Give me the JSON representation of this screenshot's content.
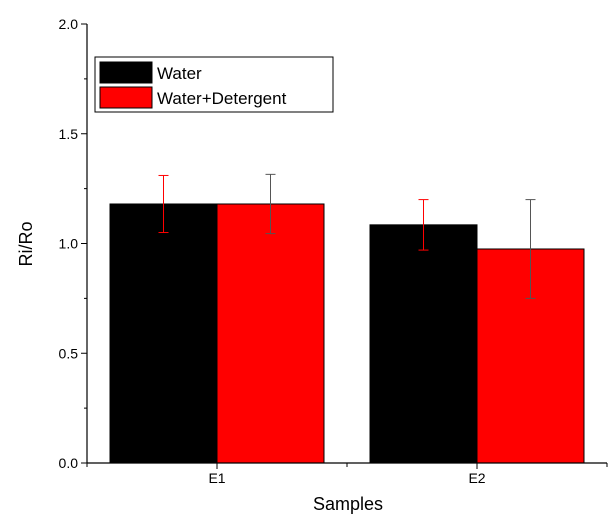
{
  "chart_data": {
    "type": "bar",
    "categories": [
      "E1",
      "E2"
    ],
    "series": [
      {
        "name": "Water",
        "color": "#000000",
        "values": [
          1.18,
          1.085
        ],
        "errors": [
          0.13,
          0.115
        ]
      },
      {
        "name": "Water+Detergent",
        "color": "#ff0000",
        "values": [
          1.18,
          0.975
        ],
        "errors": [
          0.135,
          0.225
        ]
      }
    ],
    "error_bar_colors": [
      "#ff0000",
      "#555555"
    ],
    "xlabel": "Samples",
    "ylabel": "Ri/Ro",
    "ylim": [
      0,
      2.0
    ],
    "yticks": [
      "0.0",
      "0.5",
      "1.0",
      "1.5",
      "2.0"
    ],
    "grid": false,
    "legend_position": "top-left"
  }
}
